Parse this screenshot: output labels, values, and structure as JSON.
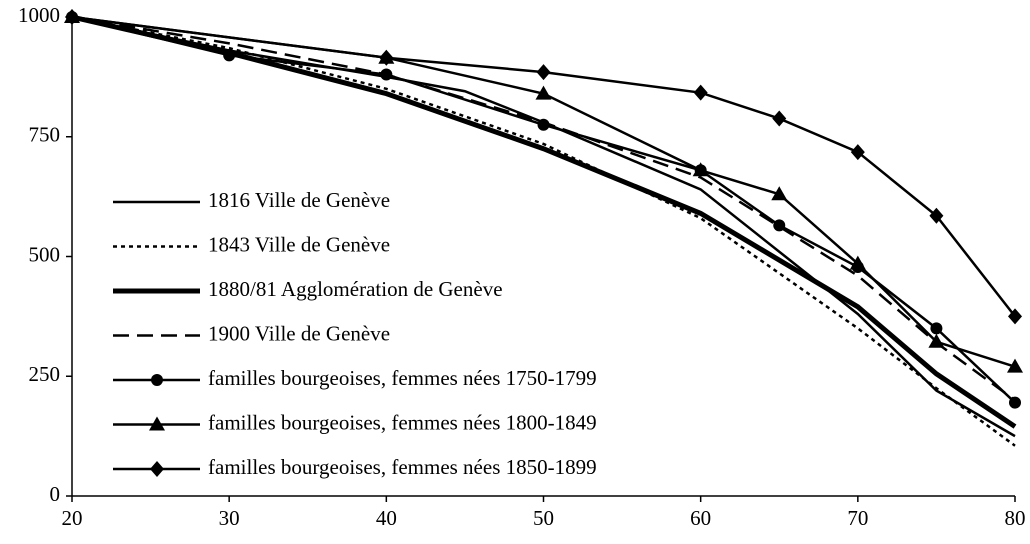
{
  "chart_data": {
    "type": "line",
    "xlim": [
      20,
      80
    ],
    "xticks": [
      20,
      30,
      40,
      50,
      60,
      70,
      80
    ],
    "ylim": [
      0,
      1000
    ],
    "yticks": [
      0,
      250,
      500,
      750,
      1000
    ],
    "legend": "left",
    "series": [
      {
        "name": "1816 Ville de Genève",
        "color": "#000000",
        "line_style": "solid",
        "line_width": 2.5,
        "marker": "none",
        "x": [
          20,
          30,
          40,
          45,
          50,
          60,
          70,
          75,
          80
        ],
        "values": [
          1000,
          930,
          875,
          845,
          780,
          640,
          380,
          220,
          125
        ]
      },
      {
        "name": "1843 Ville de Genève",
        "color": "#000000",
        "line_style": "dotted",
        "line_width": 2.5,
        "marker": "none",
        "x": [
          20,
          30,
          40,
          50,
          60,
          70,
          75,
          80
        ],
        "values": [
          1000,
          935,
          850,
          735,
          580,
          350,
          225,
          105
        ]
      },
      {
        "name": "1880/81 Agglomération de Genève",
        "color": "#000000",
        "line_style": "solid",
        "line_width": 5,
        "marker": "none",
        "x": [
          20,
          30,
          40,
          50,
          60,
          70,
          75,
          80
        ],
        "values": [
          1000,
          925,
          840,
          725,
          590,
          395,
          255,
          145
        ]
      },
      {
        "name": "1900 Ville de Genève",
        "color": "#000000",
        "line_style": "dashed",
        "line_width": 2.5,
        "marker": "none",
        "x": [
          20,
          30,
          40,
          50,
          60,
          70,
          75,
          80
        ],
        "values": [
          1000,
          945,
          880,
          780,
          665,
          460,
          320,
          200
        ]
      },
      {
        "name": "familles bourgeoises, femmes nées 1750-1799",
        "color": "#000000",
        "line_style": "solid",
        "line_width": 2.5,
        "marker": "circle",
        "x": [
          20,
          30,
          40,
          50,
          60,
          65,
          70,
          75,
          80
        ],
        "values": [
          1000,
          920,
          880,
          775,
          680,
          565,
          478,
          350,
          195
        ]
      },
      {
        "name": "familles bourgeoises, femmes nées 1800-1849",
        "color": "#000000",
        "line_style": "solid",
        "line_width": 2.5,
        "marker": "triangle",
        "x": [
          20,
          40,
          50,
          60,
          65,
          70,
          75,
          80
        ],
        "values": [
          1000,
          915,
          840,
          680,
          630,
          485,
          322,
          270
        ]
      },
      {
        "name": "familles bourgeoises, femmes nées 1850-1899",
        "color": "#000000",
        "line_style": "solid",
        "line_width": 2.5,
        "marker": "diamond",
        "x": [
          20,
          40,
          50,
          60,
          65,
          70,
          75,
          80
        ],
        "values": [
          1000,
          915,
          885,
          842,
          788,
          718,
          585,
          375
        ]
      }
    ]
  }
}
